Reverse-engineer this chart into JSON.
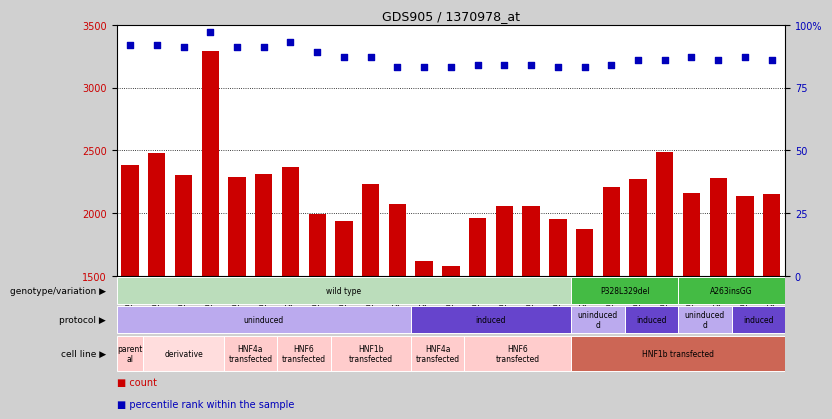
{
  "title": "GDS905 / 1370978_at",
  "samples": [
    "GSM27203",
    "GSM27204",
    "GSM27205",
    "GSM27206",
    "GSM27207",
    "GSM27150",
    "GSM27152",
    "GSM27156",
    "GSM27159",
    "GSM27063",
    "GSM27148",
    "GSM27151",
    "GSM27153",
    "GSM27157",
    "GSM27160",
    "GSM27147",
    "GSM27149",
    "GSM27161",
    "GSM27165",
    "GSM27163",
    "GSM27167",
    "GSM27169",
    "GSM27171",
    "GSM27170",
    "GSM27172"
  ],
  "counts": [
    2380,
    2480,
    2300,
    3290,
    2290,
    2310,
    2370,
    1990,
    1940,
    2230,
    2070,
    1620,
    1580,
    1960,
    2060,
    2060,
    1950,
    1870,
    2210,
    2270,
    2490,
    2160,
    2280,
    2140,
    2150
  ],
  "percentile_ranks": [
    92,
    92,
    91,
    97,
    91,
    91,
    93,
    89,
    87,
    87,
    83,
    83,
    83,
    84,
    84,
    84,
    83,
    83,
    84,
    86,
    86,
    87,
    86,
    87,
    86
  ],
  "ylim_left": [
    1500,
    3500
  ],
  "ylim_right": [
    0,
    100
  ],
  "yticks_left": [
    1500,
    2000,
    2500,
    3000,
    3500
  ],
  "yticks_right": [
    0,
    25,
    50,
    75,
    100
  ],
  "bar_color": "#cc0000",
  "dot_color": "#0000bb",
  "bg_color": "#d0d0d0",
  "plot_bg": "#ffffff",
  "genotype_segments": [
    {
      "text": "wild type",
      "start": 0,
      "end": 17,
      "color": "#bbddbb"
    },
    {
      "text": "P328L329del",
      "start": 17,
      "end": 21,
      "color": "#44bb44"
    },
    {
      "text": "A263insGG",
      "start": 21,
      "end": 25,
      "color": "#44bb44"
    }
  ],
  "protocol_segments": [
    {
      "text": "uninduced",
      "start": 0,
      "end": 11,
      "color": "#bbaaee"
    },
    {
      "text": "induced",
      "start": 11,
      "end": 17,
      "color": "#6644cc"
    },
    {
      "text": "uninduced\nd",
      "start": 17,
      "end": 19,
      "color": "#bbaaee"
    },
    {
      "text": "induced",
      "start": 19,
      "end": 21,
      "color": "#6644cc"
    },
    {
      "text": "uninduced\nd",
      "start": 21,
      "end": 23,
      "color": "#bbaaee"
    },
    {
      "text": "induced",
      "start": 23,
      "end": 25,
      "color": "#6644cc"
    }
  ],
  "cellline_segments": [
    {
      "text": "parent\nal",
      "start": 0,
      "end": 1,
      "color": "#ffcccc"
    },
    {
      "text": "derivative",
      "start": 1,
      "end": 4,
      "color": "#ffdddd"
    },
    {
      "text": "HNF4a\ntransfected",
      "start": 4,
      "end": 6,
      "color": "#ffcccc"
    },
    {
      "text": "HNF6\ntransfected",
      "start": 6,
      "end": 8,
      "color": "#ffcccc"
    },
    {
      "text": "HNF1b\ntransfected",
      "start": 8,
      "end": 11,
      "color": "#ffcccc"
    },
    {
      "text": "HNF4a\ntransfected",
      "start": 11,
      "end": 13,
      "color": "#ffcccc"
    },
    {
      "text": "HNF6\ntransfected",
      "start": 13,
      "end": 17,
      "color": "#ffcccc"
    },
    {
      "text": "HNF1b transfected",
      "start": 17,
      "end": 25,
      "color": "#cc6655"
    }
  ]
}
